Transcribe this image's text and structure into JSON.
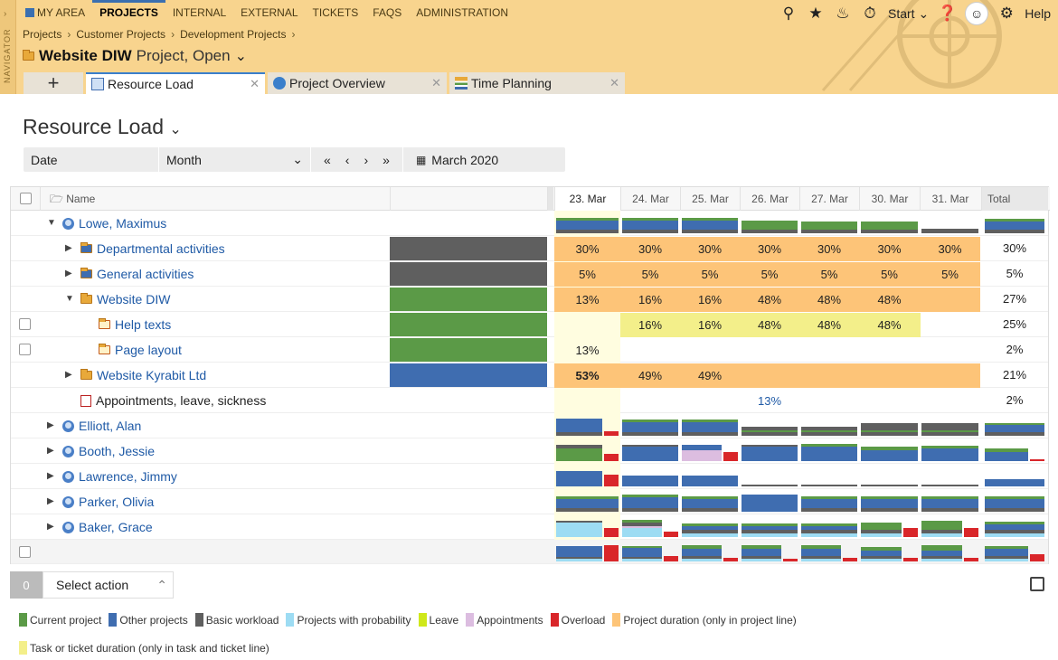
{
  "header": {
    "navigator_label": "NAVIGATOR",
    "menu": [
      "MY AREA",
      "PROJECTS",
      "INTERNAL",
      "EXTERNAL",
      "TICKETS",
      "FAQS",
      "ADMINISTRATION"
    ],
    "start_label": "Start",
    "help_label": "Help"
  },
  "breadcrumbs": [
    "Projects",
    "Customer Projects",
    "Development Projects"
  ],
  "project": {
    "name": "Website DIW",
    "status": "Project, Open"
  },
  "tabs": [
    {
      "label": "Resource Load"
    },
    {
      "label": "Project Overview"
    },
    {
      "label": "Time Planning"
    }
  ],
  "page_title": "Resource Load",
  "filters": {
    "date": "Date",
    "period": "Month",
    "month": "March 2020"
  },
  "grid": {
    "name_header": "Name",
    "dates": [
      "23. Mar",
      "24. Mar",
      "25. Mar",
      "26. Mar",
      "27. Mar",
      "30. Mar",
      "31. Mar"
    ],
    "total_header": "Total",
    "rows": [
      {
        "name": "Lowe, Maximus"
      },
      {
        "name": "Departmental activities",
        "cells": [
          "30%",
          "30%",
          "30%",
          "30%",
          "30%",
          "30%",
          "30%"
        ],
        "total": "30%"
      },
      {
        "name": "General activities",
        "cells": [
          "5%",
          "5%",
          "5%",
          "5%",
          "5%",
          "5%",
          "5%"
        ],
        "total": "5%"
      },
      {
        "name": "Website DIW",
        "cells": [
          "13%",
          "16%",
          "16%",
          "48%",
          "48%",
          "48%",
          ""
        ],
        "total": "27%"
      },
      {
        "name": "Help texts",
        "cells": [
          "",
          "16%",
          "16%",
          "48%",
          "48%",
          "48%",
          ""
        ],
        "total": "25%"
      },
      {
        "name": "Page layout",
        "cells": [
          "13%",
          "",
          "",
          "",
          "",
          "",
          ""
        ],
        "total": "2%"
      },
      {
        "name": "Website Kyrabit Ltd",
        "cells": [
          "53%",
          "49%",
          "49%",
          "",
          "",
          "",
          ""
        ],
        "total": "21%"
      },
      {
        "name": "Appointments, leave, sickness",
        "cells": [
          "",
          "",
          "",
          "13%",
          "",
          "",
          ""
        ],
        "total": "2%"
      },
      {
        "name": "Elliott, Alan"
      },
      {
        "name": "Booth, Jessie"
      },
      {
        "name": "Lawrence, Jimmy"
      },
      {
        "name": "Parker, Olivia"
      },
      {
        "name": "Baker, Grace"
      }
    ]
  },
  "footer": {
    "count": "0",
    "action": "Select action"
  },
  "legend": [
    {
      "label": "Current project",
      "color": "#5b9a47"
    },
    {
      "label": "Other projects",
      "color": "#3f6db0"
    },
    {
      "label": "Basic workload",
      "color": "#5f5f5f"
    },
    {
      "label": "Projects with probability",
      "color": "#9ddcf3"
    },
    {
      "label": "Leave",
      "color": "#cfe81a"
    },
    {
      "label": "Appointments",
      "color": "#dcbde0"
    },
    {
      "label": "Overload",
      "color": "#d9262a"
    },
    {
      "label": "Project duration (only in project line)",
      "color": "#fdc478"
    },
    {
      "label": "Task or ticket duration (only in task and ticket line)",
      "color": "#f3ef8a"
    }
  ],
  "colors": {
    "header_bg": "#f8d48e",
    "accent": "#3a7fcb",
    "project_duration": "#fdc478",
    "task_duration": "#f3ef8a",
    "today": "#fffde0"
  }
}
